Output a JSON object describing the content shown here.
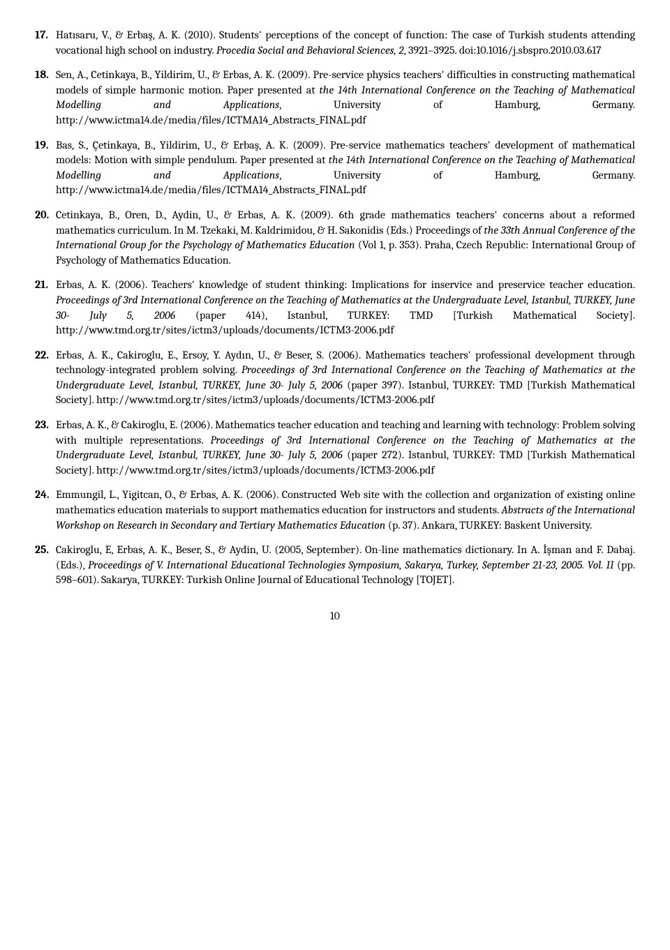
{
  "references": [
    {
      "num": "17.",
      "parts": [
        {
          "text": "Hatısaru, V., & Erbaş, A. K. (2010). Students' perceptions of the concept of function: The case of Turkish students attending vocational high school on industry. ",
          "italic": false
        },
        {
          "text": "Procedia Social and Behavioral Sciences, 2",
          "italic": true
        },
        {
          "text": ", 3921–3925. doi:10.1016/j.sbspro.2010.03.617",
          "italic": false
        }
      ]
    },
    {
      "num": "18.",
      "parts": [
        {
          "text": "Sen, A., Cetinkaya, B., Yildirim, U., & Erbas, A. K. (2009). Pre-service physics teachers' difficulties in constructing mathematical models of simple harmonic motion. Paper presented at ",
          "italic": false
        },
        {
          "text": "the 14th International Conference on the Teaching of Mathematical Modelling and Applications",
          "italic": true
        },
        {
          "text": ", University of Hamburg, Germany. http://www.ictma14.de/media/files/ICTMA14_Abstracts_FINAL.pdf",
          "italic": false
        }
      ]
    },
    {
      "num": "19.",
      "parts": [
        {
          "text": "Bas, S., Çetinkaya, B., Yildirim, U., & Erbaş, A. K. (2009). Pre-service mathematics teachers' development of mathematical models: Motion with simple pendulum.  Paper presented at ",
          "italic": false
        },
        {
          "text": "the 14th International Conference on the Teaching of Mathematical Modelling and Applications",
          "italic": true
        },
        {
          "text": ", University of Hamburg, Germany. http://www.ictma14.de/media/files/ICTMA14_Abstracts_FINAL.pdf",
          "italic": false
        }
      ]
    },
    {
      "num": "20.",
      "parts": [
        {
          "text": "Cetinkaya, B., Oren, D., Aydin, U., & Erbas, A. K. (2009). 6th grade mathematics teachers' concerns about a reformed mathematics curriculum. In M. Tzekaki, M. Kaldrimidou, & H. Sakonidis (Eds.) Proceedings of ",
          "italic": false
        },
        {
          "text": "the 33th Annual Conference of the International Group for the Psychology of Mathematics Education ",
          "italic": true
        },
        {
          "text": "(Vol 1, p. 353). Praha, Czech Republic: International Group of Psychology of Mathematics Education.",
          "italic": false
        }
      ]
    },
    {
      "num": "21.",
      "parts": [
        {
          "text": "Erbas, A. K. (2006). Teachers' knowledge of student thinking: Implications for inservice and preservice teacher education. ",
          "italic": false
        },
        {
          "text": "Proceedings of 3rd International Conference on the Teaching of Mathematics at the Undergraduate Level, Istanbul, TURKEY, June 30- July 5, 2006 ",
          "italic": true
        },
        {
          "text": "(paper 414), Istanbul, TURKEY: TMD [Turkish Mathematical Society]. http://www.tmd.org.tr/sites/ictm3/uploads/documents/ICTM3-2006.pdf",
          "italic": false
        }
      ]
    },
    {
      "num": "22.",
      "parts": [
        {
          "text": "Erbas, A. K., Cakiroglu, E., Ersoy, Y. Aydın, U., & Beser, S. (2006). Mathematics teachers' professional development through technology-integrated problem solving. ",
          "italic": false
        },
        {
          "text": "Proceedings of 3rd International Conference on the Teaching of Mathematics at the Undergraduate Level, Istanbul, TURKEY, June 30- July 5, 2006 ",
          "italic": true
        },
        {
          "text": "(paper 397). Istanbul, TURKEY: TMD [Turkish Mathematical Society]. http://www.tmd.org.tr/sites/ictm3/uploads/documents/ICTM3-2006.pdf",
          "italic": false
        }
      ]
    },
    {
      "num": "23.",
      "parts": [
        {
          "text": "Erbas, A. K., & Cakiroglu, E. (2006). Mathematics teacher education and teaching and learning with technology: Problem solving with multiple representations. ",
          "italic": false
        },
        {
          "text": "Proceedings of 3rd International Conference on the Teaching of Mathematics at the Undergraduate Level, Istanbul, TURKEY, June 30- July 5, 2006 ",
          "italic": true
        },
        {
          "text": "(paper 272). Istanbul, TURKEY: TMD [Turkish Mathematical Society]. http://www.tmd.org.tr/sites/ictm3/uploads/documents/ICTM3-2006.pdf",
          "italic": false
        }
      ]
    },
    {
      "num": "24.",
      "parts": [
        {
          "text": "Emmungil, L., Yigitcan, O., & Erbas, A. K. (2006). Constructed Web site with the collection and organization of existing online mathematics education materials to support mathematics education for instructors and students. ",
          "italic": false
        },
        {
          "text": "Abstracts of the International Workshop on Research in Secondary and Tertiary Mathematics Education ",
          "italic": true
        },
        {
          "text": "(p. 37). Ankara, TURKEY: Baskent University.",
          "italic": false
        }
      ]
    },
    {
      "num": "25.",
      "parts": [
        {
          "text": "Cakiroglu, E, Erbas, A. K., Beser, S., & Aydin, U. (2005, September). On-line mathematics dictionary. In A. İşman and F. Dabaj. (Eds.), ",
          "italic": false
        },
        {
          "text": "Proceedings of V. International Educational Technologies Symposium, Sakarya, Turkey, September 21-23, 2005. Vol. II ",
          "italic": true
        },
        {
          "text": "(pp. 598–601). Sakarya, TURKEY: Turkish Online Journal of Educational Technology [TOJET].",
          "italic": false
        }
      ]
    }
  ],
  "page_number": "10"
}
